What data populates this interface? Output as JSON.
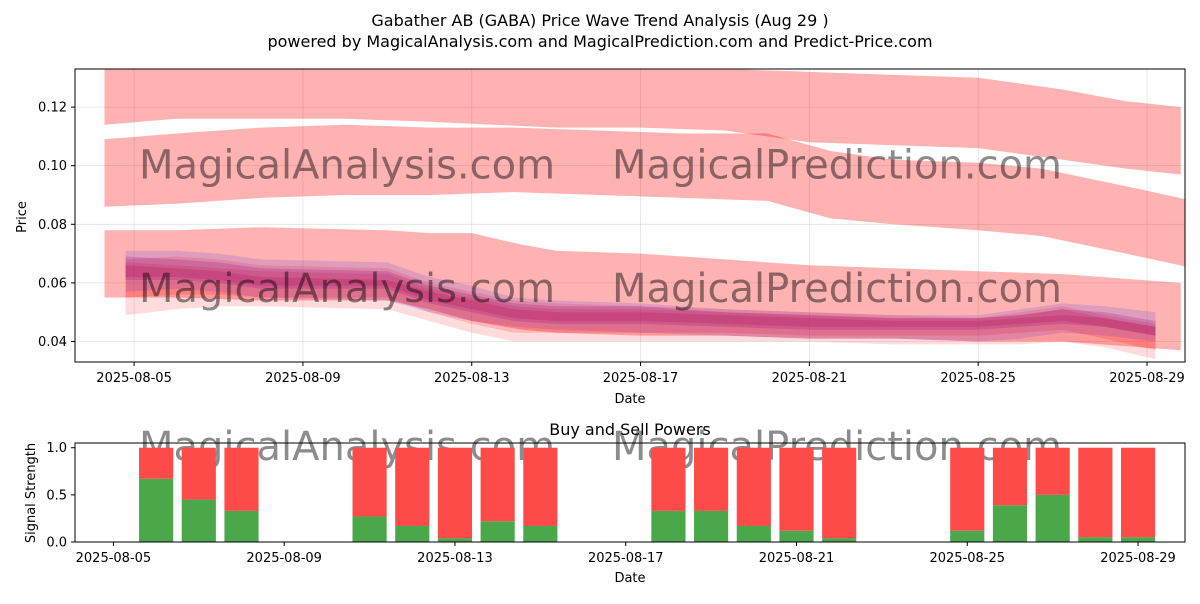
{
  "chart_data": [
    {
      "type": "area",
      "title": "Gabather AB (GABA) Price Wave Trend Analysis (Aug 29 )",
      "subtitle": "powered by MagicalAnalysis.com and MagicalPrediction.com and Predict-Price.com",
      "xlabel": "Date",
      "ylabel": "Price",
      "xlim": [
        "2025-08-03.6",
        "2025-08-29.9"
      ],
      "ylim": [
        0.033,
        0.133
      ],
      "x_ticks": [
        "2025-08-05",
        "2025-08-09",
        "2025-08-13",
        "2025-08-17",
        "2025-08-21",
        "2025-08-25",
        "2025-08-29"
      ],
      "y_ticks": [
        0.04,
        0.06,
        0.08,
        0.1,
        0.12
      ],
      "y_tick_labels": [
        "0.04",
        "0.06",
        "0.08",
        "0.10",
        "0.12"
      ],
      "grid": true,
      "watermarks": [
        "MagicalAnalysis.com",
        "MagicalPrediction.com"
      ],
      "bands": [
        {
          "color": "#ff0000",
          "opacity": 0.3,
          "x": [
            4.3,
            6,
            8,
            10,
            12,
            13.5,
            15,
            17,
            19,
            21,
            23,
            25,
            27,
            28.5,
            29.8
          ],
          "upper": [
            0.133,
            0.133,
            0.133,
            0.133,
            0.133,
            0.133,
            0.133,
            0.133,
            0.133,
            0.132,
            0.131,
            0.13,
            0.126,
            0.122,
            0.12
          ],
          "lower": [
            0.114,
            0.116,
            0.116,
            0.116,
            0.115,
            0.114,
            0.113,
            0.113,
            0.112,
            0.108,
            0.107,
            0.106,
            0.102,
            0.099,
            0.097
          ]
        },
        {
          "color": "#ff0000",
          "opacity": 0.3,
          "x": [
            4.3,
            6,
            8,
            10,
            12,
            14,
            16,
            18,
            20,
            21.5,
            23,
            25,
            26.5,
            28.5,
            30.1
          ],
          "upper": [
            0.109,
            0.111,
            0.113,
            0.114,
            0.113,
            0.113,
            0.112,
            0.111,
            0.111,
            0.105,
            0.102,
            0.101,
            0.099,
            0.093,
            0.088
          ],
          "lower": [
            0.086,
            0.087,
            0.089,
            0.09,
            0.09,
            0.091,
            0.09,
            0.089,
            0.088,
            0.082,
            0.08,
            0.078,
            0.076,
            0.07,
            0.065
          ]
        },
        {
          "color": "#ff0000",
          "opacity": 0.3,
          "x": [
            4.3,
            6,
            8,
            11,
            12,
            13,
            14.2,
            15,
            17,
            19,
            21,
            23,
            25,
            27,
            29.8
          ],
          "upper": [
            0.078,
            0.078,
            0.079,
            0.078,
            0.077,
            0.077,
            0.073,
            0.071,
            0.07,
            0.068,
            0.066,
            0.065,
            0.064,
            0.063,
            0.06
          ],
          "lower": [
            0.055,
            0.055,
            0.054,
            0.054,
            0.051,
            0.047,
            0.044,
            0.043,
            0.042,
            0.042,
            0.041,
            0.041,
            0.04,
            0.04,
            0.037
          ]
        },
        {
          "color": "#ff0000",
          "opacity": 0.14,
          "x": [
            4.8,
            6,
            7,
            8,
            11,
            12,
            13,
            14,
            15,
            17,
            19,
            21,
            23,
            25,
            26,
            27,
            28,
            29.2
          ],
          "upper": [
            0.068,
            0.069,
            0.068,
            0.066,
            0.065,
            0.06,
            0.057,
            0.054,
            0.053,
            0.052,
            0.051,
            0.05,
            0.049,
            0.048,
            0.05,
            0.052,
            0.049,
            0.046
          ],
          "lower": [
            0.049,
            0.051,
            0.052,
            0.052,
            0.051,
            0.047,
            0.043,
            0.04,
            0.04,
            0.04,
            0.04,
            0.04,
            0.039,
            0.039,
            0.039,
            0.04,
            0.038,
            0.034
          ]
        },
        {
          "color": "#ff0000",
          "opacity": 0.16,
          "x": [
            4.8,
            6,
            7,
            8,
            11,
            12,
            13,
            14,
            15,
            17,
            19,
            21,
            23,
            25,
            26,
            27,
            28,
            29.2
          ],
          "upper": [
            0.067,
            0.066,
            0.065,
            0.064,
            0.063,
            0.058,
            0.055,
            0.052,
            0.051,
            0.051,
            0.05,
            0.049,
            0.048,
            0.048,
            0.049,
            0.051,
            0.048,
            0.045
          ],
          "lower": [
            0.055,
            0.056,
            0.056,
            0.055,
            0.055,
            0.05,
            0.046,
            0.043,
            0.043,
            0.043,
            0.043,
            0.042,
            0.042,
            0.042,
            0.043,
            0.044,
            0.041,
            0.037
          ]
        },
        {
          "color": "#0000ff",
          "opacity": 0.12,
          "x": [
            4.8,
            6,
            7,
            8,
            11,
            12,
            13,
            14,
            15,
            17,
            19,
            21,
            23,
            25,
            26,
            27,
            28,
            29.2
          ],
          "upper": [
            0.071,
            0.071,
            0.07,
            0.068,
            0.067,
            0.062,
            0.059,
            0.055,
            0.054,
            0.053,
            0.051,
            0.05,
            0.049,
            0.049,
            0.051,
            0.053,
            0.052,
            0.05
          ],
          "lower": [
            0.057,
            0.058,
            0.057,
            0.055,
            0.054,
            0.05,
            0.047,
            0.045,
            0.044,
            0.043,
            0.042,
            0.041,
            0.041,
            0.04,
            0.041,
            0.043,
            0.042,
            0.04
          ]
        },
        {
          "color": "#800080",
          "opacity": 0.2,
          "x": [
            4.8,
            6,
            7,
            8,
            11,
            12,
            13,
            14,
            15,
            17,
            19,
            21,
            23,
            25,
            26,
            27,
            28,
            29.2
          ],
          "upper": [
            0.069,
            0.068,
            0.067,
            0.065,
            0.064,
            0.059,
            0.056,
            0.053,
            0.052,
            0.052,
            0.05,
            0.049,
            0.048,
            0.048,
            0.049,
            0.051,
            0.05,
            0.047
          ],
          "lower": [
            0.061,
            0.061,
            0.06,
            0.058,
            0.058,
            0.053,
            0.05,
            0.047,
            0.046,
            0.046,
            0.045,
            0.044,
            0.044,
            0.044,
            0.045,
            0.046,
            0.045,
            0.042
          ]
        },
        {
          "color": "#c0306a",
          "opacity": 0.45,
          "x": [
            4.8,
            6,
            7,
            8,
            11,
            12,
            13,
            14,
            15,
            17,
            19,
            21,
            23,
            25,
            26,
            27,
            28,
            29.2
          ],
          "upper": [
            0.066,
            0.065,
            0.064,
            0.062,
            0.061,
            0.057,
            0.054,
            0.051,
            0.05,
            0.05,
            0.049,
            0.048,
            0.047,
            0.047,
            0.048,
            0.049,
            0.048,
            0.045
          ],
          "lower": [
            0.062,
            0.062,
            0.061,
            0.059,
            0.059,
            0.054,
            0.051,
            0.048,
            0.047,
            0.047,
            0.046,
            0.045,
            0.045,
            0.045,
            0.046,
            0.047,
            0.045,
            0.042
          ]
        }
      ]
    },
    {
      "type": "bar",
      "title": "Buy and Sell Powers",
      "xlabel": "Date",
      "ylabel": "Signal Strength",
      "xlim": [
        "2025-08-04.1",
        "2025-08-30.1"
      ],
      "ylim": [
        0,
        1.05
      ],
      "x_ticks": [
        "2025-08-05",
        "2025-08-09",
        "2025-08-13",
        "2025-08-17",
        "2025-08-21",
        "2025-08-25",
        "2025-08-29"
      ],
      "y_ticks": [
        0.0,
        0.5,
        1.0
      ],
      "y_tick_labels": [
        "0.0",
        "0.5",
        "1.0"
      ],
      "buy_color": "#4aa84a",
      "sell_color": "#ff4a4a",
      "dates": [
        "2025-08-06",
        "2025-08-07",
        "2025-08-08",
        "2025-08-11",
        "2025-08-12",
        "2025-08-13",
        "2025-08-14",
        "2025-08-15",
        "2025-08-18",
        "2025-08-19",
        "2025-08-20",
        "2025-08-21",
        "2025-08-22",
        "2025-08-25",
        "2025-08-26",
        "2025-08-27",
        "2025-08-28",
        "2025-08-29"
      ],
      "day_index": [
        6,
        7,
        8,
        11,
        12,
        13,
        14,
        15,
        18,
        19,
        20,
        21,
        22,
        25,
        26,
        27,
        28,
        29
      ],
      "buy": [
        0.67,
        0.45,
        0.33,
        0.27,
        0.17,
        0.04,
        0.22,
        0.17,
        0.33,
        0.33,
        0.17,
        0.12,
        0.04,
        0.12,
        0.39,
        0.5,
        0.05,
        0.05
      ],
      "sell": [
        0.33,
        0.55,
        0.67,
        0.73,
        0.83,
        0.96,
        0.78,
        0.83,
        0.67,
        0.67,
        0.83,
        0.88,
        0.96,
        0.88,
        0.61,
        0.5,
        0.95,
        0.95
      ],
      "watermarks": [
        "MagicalAnalysis.com",
        "MagicalPrediction.com"
      ]
    }
  ]
}
